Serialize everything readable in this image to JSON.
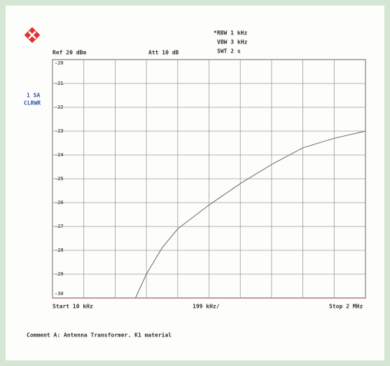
{
  "chart_data": {
    "type": "line",
    "ref_level": "Ref 20 dBm",
    "attenuation": "Att 10 dB",
    "rbw": "*RBW 1 kHz",
    "vbw": "VBW 3 kHz",
    "sweep_time": "SWT 2 s",
    "trace_mode": [
      "1 SA",
      "CLRWR"
    ],
    "start_label": "Start 10 kHz",
    "span_label": "199 kHz/",
    "stop_label": "Stop 2 MHz",
    "comment": "Comment A: Antenna Transformer. K1 material",
    "x": [
      537350,
      607000,
      706500,
      806000,
      1005000,
      1204000,
      1403000,
      1602000,
      1801000,
      2000000
    ],
    "values": [
      -30,
      -29.0,
      -27.9,
      -27.1,
      -26.1,
      -25.2,
      -24.4,
      -23.7,
      -23.3,
      -23.0
    ],
    "color": "#666666",
    "xlim": [
      10000,
      2000000
    ],
    "xticks": [
      10000,
      209000,
      408000,
      607000,
      806000,
      1005000,
      1204000,
      1403000,
      1602000,
      1801000,
      2000000
    ],
    "ylim": [
      -30,
      -20
    ],
    "yticks": [
      -20,
      -21,
      -22,
      -23,
      -24,
      -25,
      -26,
      -27,
      -28,
      -29,
      -30
    ],
    "grid": true
  }
}
